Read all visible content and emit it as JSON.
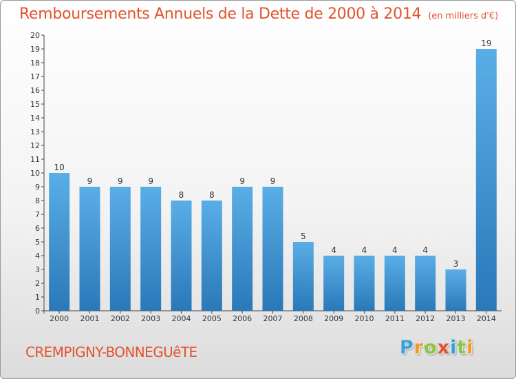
{
  "header": {
    "title": "Remboursements Annuels de la Dette de 2000 à 2014",
    "unit": "(en milliers d'€)"
  },
  "footer": {
    "commune": "CREMPIGNY-BONNEGUêTE",
    "logo_letters": [
      "P",
      "r",
      "o",
      "x",
      "i",
      "t",
      "i"
    ],
    "logo_colors": [
      "#3aa0dc",
      "#f29a1e",
      "#8cc63f",
      "#e2532c",
      "#3aa0dc",
      "#8cc63f",
      "#f29a1e"
    ]
  },
  "colors": {
    "title": "#e2532c",
    "bar_light": "#5aaee6",
    "bar_dark": "#2a78b8"
  },
  "chart_data": {
    "type": "bar",
    "title": "Remboursements Annuels de la Dette de 2000 à 2014",
    "categories": [
      "2000",
      "2001",
      "2002",
      "2003",
      "2004",
      "2005",
      "2006",
      "2007",
      "2008",
      "2009",
      "2010",
      "2011",
      "2012",
      "2013",
      "2014"
    ],
    "values": [
      10,
      9,
      9,
      9,
      8,
      8,
      9,
      9,
      5,
      4,
      4,
      4,
      4,
      3,
      19
    ],
    "ylim": [
      0,
      20
    ],
    "yticks": [
      "0",
      "1",
      "2",
      "3",
      "4",
      "5",
      "6",
      "7",
      "8",
      "9",
      "10",
      "11",
      "12",
      "13",
      "14",
      "15",
      "16",
      "17",
      "18",
      "19",
      "20"
    ],
    "xlabel": "",
    "ylabel": "",
    "grid": false,
    "legend": "none"
  }
}
